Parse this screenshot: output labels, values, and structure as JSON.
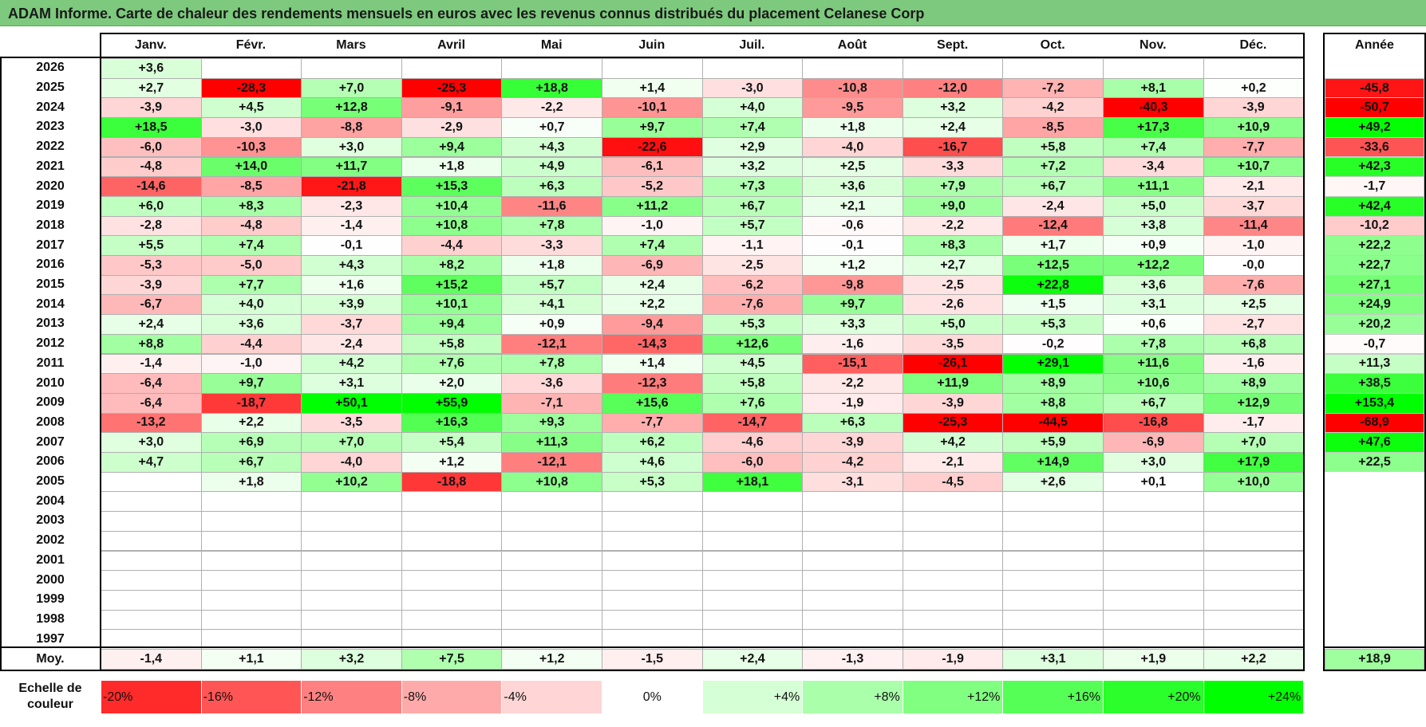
{
  "title": "ADAM Informe. Carte de chaleur des rendements mensuels en euros avec les revenus connus distribués du placement Celanese Corp",
  "chart_data": {
    "type": "heatmap",
    "title": "ADAM Informe. Carte de chaleur des rendements mensuels en euros avec les revenus connus distribués du placement Celanese Corp",
    "months": [
      "Janv.",
      "Févr.",
      "Mars",
      "Avril",
      "Mai",
      "Juin",
      "Juil.",
      "Août",
      "Sept.",
      "Oct.",
      "Nov.",
      "Déc."
    ],
    "year_header": "Année",
    "rows": [
      {
        "year": "2026",
        "values": [
          "+3,6",
          "",
          "",
          "",
          "",
          "",
          "",
          "",
          "",
          "",
          "",
          ""
        ],
        "annual": ""
      },
      {
        "year": "2025",
        "values": [
          "+2,7",
          "-28,3",
          "+7,0",
          "-25,3",
          "+18,8",
          "+1,4",
          "-3,0",
          "-10,8",
          "-12,0",
          "-7,2",
          "+8,1",
          "+0,2"
        ],
        "annual": "-45,8"
      },
      {
        "year": "2024",
        "values": [
          "-3,9",
          "+4,5",
          "+12,8",
          "-9,1",
          "-2,2",
          "-10,1",
          "+4,0",
          "-9,5",
          "+3,2",
          "-4,2",
          "-40,3",
          "-3,9"
        ],
        "annual": "-50,7"
      },
      {
        "year": "2023",
        "values": [
          "+18,5",
          "-3,0",
          "-8,8",
          "-2,9",
          "+0,7",
          "+9,7",
          "+7,4",
          "+1,8",
          "+2,4",
          "-8,5",
          "+17,3",
          "+10,9"
        ],
        "annual": "+49,2"
      },
      {
        "year": "2022",
        "values": [
          "-6,0",
          "-10,3",
          "+3,0",
          "+9,4",
          "+4,3",
          "-22,6",
          "+2,9",
          "-4,0",
          "-16,7",
          "+5,8",
          "+7,4",
          "-7,7"
        ],
        "annual": "-33,6"
      },
      {
        "year": "2021",
        "values": [
          "-4,8",
          "+14,0",
          "+11,7",
          "+1,8",
          "+4,9",
          "-6,1",
          "+3,2",
          "+2,5",
          "-3,3",
          "+7,2",
          "-3,4",
          "+10,7"
        ],
        "annual": "+42,3"
      },
      {
        "year": "2020",
        "values": [
          "-14,6",
          "-8,5",
          "-21,8",
          "+15,3",
          "+6,3",
          "-5,2",
          "+7,3",
          "+3,6",
          "+7,9",
          "+6,7",
          "+11,1",
          "-2,1"
        ],
        "annual": "-1,7"
      },
      {
        "year": "2019",
        "values": [
          "+6,0",
          "+8,3",
          "-2,3",
          "+10,4",
          "-11,6",
          "+11,2",
          "+6,7",
          "+2,1",
          "+9,0",
          "-2,4",
          "+5,0",
          "-3,7"
        ],
        "annual": "+42,4"
      },
      {
        "year": "2018",
        "values": [
          "-2,8",
          "-4,8",
          "-1,4",
          "+10,8",
          "+7,8",
          "-1,0",
          "+5,7",
          "-0,6",
          "-2,2",
          "-12,4",
          "+3,8",
          "-11,4"
        ],
        "annual": "-10,2"
      },
      {
        "year": "2017",
        "values": [
          "+5,5",
          "+7,4",
          "-0,1",
          "-4,4",
          "-3,3",
          "+7,4",
          "-1,1",
          "-0,1",
          "+8,3",
          "+1,7",
          "+0,9",
          "-1,0"
        ],
        "annual": "+22,2"
      },
      {
        "year": "2016",
        "values": [
          "-5,3",
          "-5,0",
          "+4,3",
          "+8,2",
          "+1,8",
          "-6,9",
          "-2,5",
          "+1,2",
          "+2,7",
          "+12,5",
          "+12,2",
          "-0,0"
        ],
        "annual": "+22,7"
      },
      {
        "year": "2015",
        "values": [
          "-3,9",
          "+7,7",
          "+1,6",
          "+15,2",
          "+5,7",
          "+2,4",
          "-6,2",
          "-9,8",
          "-2,5",
          "+22,8",
          "+3,6",
          "-7,6"
        ],
        "annual": "+27,1"
      },
      {
        "year": "2014",
        "values": [
          "-6,7",
          "+4,0",
          "+3,9",
          "+10,1",
          "+4,1",
          "+2,2",
          "-7,6",
          "+9,7",
          "-2,6",
          "+1,5",
          "+3,1",
          "+2,5"
        ],
        "annual": "+24,9"
      },
      {
        "year": "2013",
        "values": [
          "+2,4",
          "+3,6",
          "-3,7",
          "+9,4",
          "+0,9",
          "-9,4",
          "+5,3",
          "+3,3",
          "+5,0",
          "+5,3",
          "+0,6",
          "-2,7"
        ],
        "annual": "+20,2"
      },
      {
        "year": "2012",
        "values": [
          "+8,8",
          "-4,4",
          "-2,4",
          "+5,8",
          "-12,1",
          "-14,3",
          "+12,6",
          "-1,6",
          "-3,5",
          "-0,2",
          "+7,8",
          "+6,8"
        ],
        "annual": "-0,7"
      },
      {
        "year": "2011",
        "values": [
          "-1,4",
          "-1,0",
          "+4,2",
          "+7,6",
          "+7,8",
          "+1,4",
          "+4,5",
          "-15,1",
          "-26,1",
          "+29,1",
          "+11,6",
          "-1,6"
        ],
        "annual": "+11,3"
      },
      {
        "year": "2010",
        "values": [
          "-6,4",
          "+9,7",
          "+3,1",
          "+2,0",
          "-3,6",
          "-12,3",
          "+5,8",
          "-2,2",
          "+11,9",
          "+8,9",
          "+10,6",
          "+8,9"
        ],
        "annual": "+38,5"
      },
      {
        "year": "2009",
        "values": [
          "-6,4",
          "-18,7",
          "+50,1",
          "+55,9",
          "-7,1",
          "+15,6",
          "+7,6",
          "-1,9",
          "-3,9",
          "+8,8",
          "+6,7",
          "+12,9"
        ],
        "annual": "+153,4"
      },
      {
        "year": "2008",
        "values": [
          "-13,2",
          "+2,2",
          "-3,5",
          "+16,3",
          "+9,3",
          "-7,7",
          "-14,7",
          "+6,3",
          "-25,3",
          "-44,5",
          "-16,8",
          "-1,7"
        ],
        "annual": "-68,9"
      },
      {
        "year": "2007",
        "values": [
          "+3,0",
          "+6,9",
          "+7,0",
          "+5,4",
          "+11,3",
          "+6,2",
          "-4,6",
          "-3,9",
          "+4,2",
          "+5,9",
          "-6,9",
          "+7,0"
        ],
        "annual": "+47,6"
      },
      {
        "year": "2006",
        "values": [
          "+4,7",
          "+6,7",
          "-4,0",
          "+1,2",
          "-12,1",
          "+4,6",
          "-6,0",
          "-4,2",
          "-2,1",
          "+14,9",
          "+3,0",
          "+17,9"
        ],
        "annual": "+22,5"
      },
      {
        "year": "2005",
        "values": [
          "",
          "+1,8",
          "+10,2",
          "-18,8",
          "+10,8",
          "+5,3",
          "+18,1",
          "-3,1",
          "-4,5",
          "+2,6",
          "+0,1",
          "+10,0"
        ],
        "annual": ""
      },
      {
        "year": "2004",
        "values": [
          "",
          "",
          "",
          "",
          "",
          "",
          "",
          "",
          "",
          "",
          "",
          ""
        ],
        "annual": ""
      },
      {
        "year": "2003",
        "values": [
          "",
          "",
          "",
          "",
          "",
          "",
          "",
          "",
          "",
          "",
          "",
          ""
        ],
        "annual": ""
      },
      {
        "year": "2002",
        "values": [
          "",
          "",
          "",
          "",
          "",
          "",
          "",
          "",
          "",
          "",
          "",
          ""
        ],
        "annual": ""
      },
      {
        "year": "2001",
        "values": [
          "",
          "",
          "",
          "",
          "",
          "",
          "",
          "",
          "",
          "",
          "",
          ""
        ],
        "annual": ""
      },
      {
        "year": "2000",
        "values": [
          "",
          "",
          "",
          "",
          "",
          "",
          "",
          "",
          "",
          "",
          "",
          ""
        ],
        "annual": ""
      },
      {
        "year": "1999",
        "values": [
          "",
          "",
          "",
          "",
          "",
          "",
          "",
          "",
          "",
          "",
          "",
          ""
        ],
        "annual": ""
      },
      {
        "year": "1998",
        "values": [
          "",
          "",
          "",
          "",
          "",
          "",
          "",
          "",
          "",
          "",
          "",
          ""
        ],
        "annual": ""
      },
      {
        "year": "1997",
        "values": [
          "",
          "",
          "",
          "",
          "",
          "",
          "",
          "",
          "",
          "",
          "",
          ""
        ],
        "annual": ""
      }
    ],
    "average": {
      "label": "Moy.",
      "values": [
        "-1,4",
        "+1,1",
        "+3,2",
        "+7,5",
        "+1,2",
        "-1,5",
        "+2,4",
        "-1,3",
        "-1,9",
        "+3,1",
        "+1,9",
        "+2,2"
      ],
      "annual": "+18,9"
    },
    "scale": {
      "label": "Echelle de couleur",
      "steps": [
        "-20%",
        "-16%",
        "-12%",
        "-8%",
        "-4%",
        "0%",
        "+4%",
        "+8%",
        "+12%",
        "+16%",
        "+20%",
        "+24%"
      ]
    }
  }
}
